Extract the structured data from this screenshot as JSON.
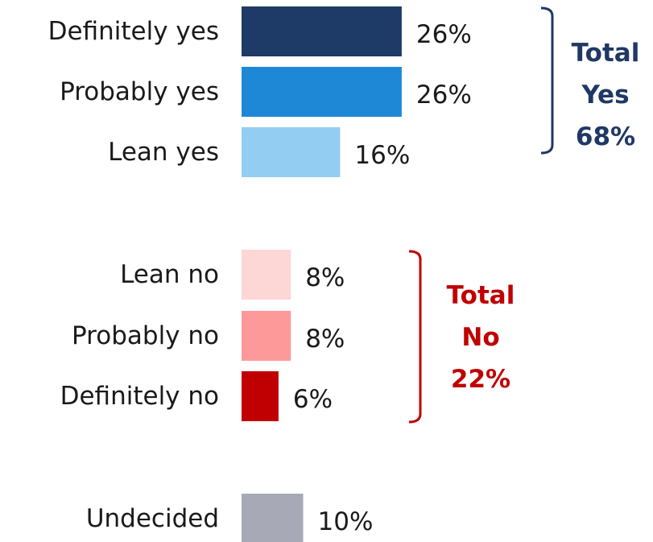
{
  "chart_data": {
    "type": "bar",
    "orientation": "horizontal",
    "categories": [
      "Definitely yes",
      "Probably yes",
      "Lean yes",
      "Lean no",
      "Probably no",
      "Definitely no",
      "Undecided"
    ],
    "values": [
      26,
      26,
      16,
      8,
      8,
      6,
      10
    ],
    "value_labels": [
      "26%",
      "26%",
      "16%",
      "8%",
      "8%",
      "6%",
      "10%"
    ],
    "bar_colors": [
      "#1e3a66",
      "#1e88d6",
      "#93cdf1",
      "#fdd6d6",
      "#fd9999",
      "#c00000",
      "#a7a9b6"
    ],
    "groups": [
      {
        "name": "yes",
        "members": [
          0,
          1,
          2
        ],
        "total_lines": [
          "Total",
          "Yes",
          "68%"
        ],
        "color": "#1f3864"
      },
      {
        "name": "no",
        "members": [
          3,
          4,
          5
        ],
        "total_lines": [
          "Total",
          "No",
          "22%"
        ],
        "color": "#c00000"
      }
    ],
    "title": "",
    "xlabel": "",
    "ylabel": "",
    "grid": false,
    "legend": "none"
  }
}
